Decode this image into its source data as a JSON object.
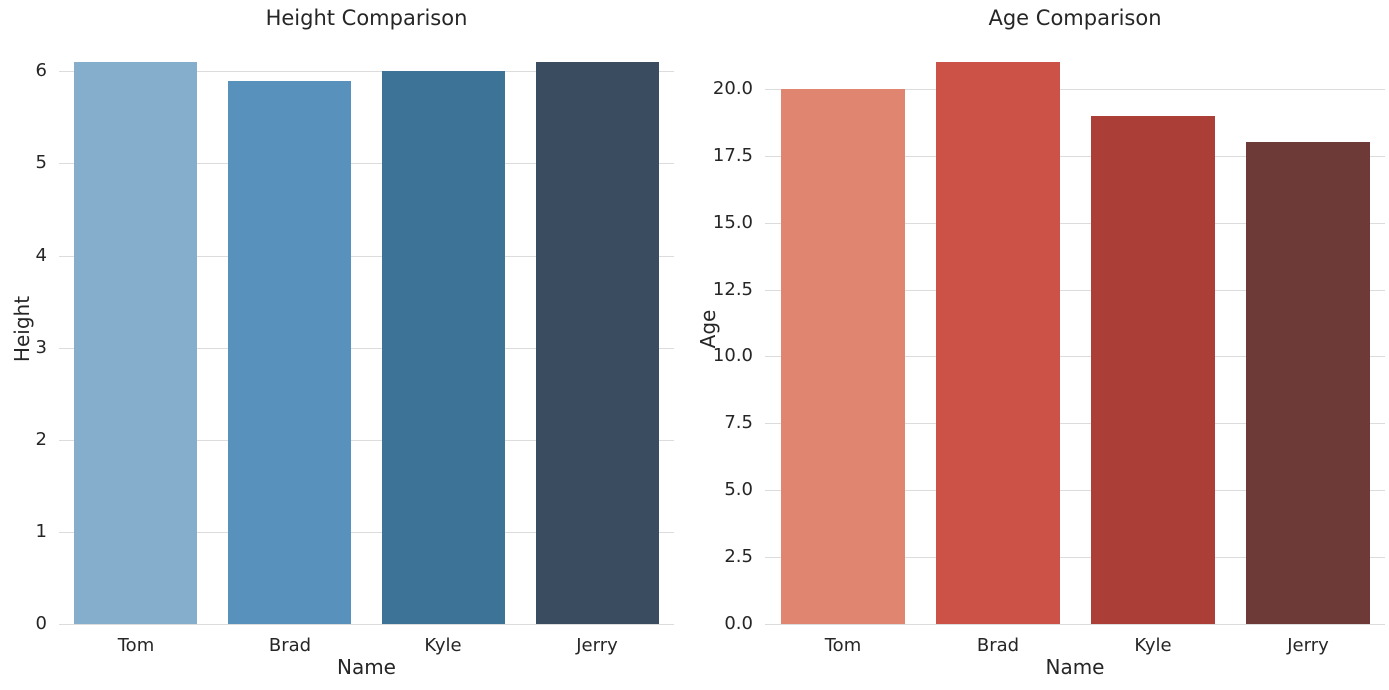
{
  "figure": {
    "background": "#ffffff",
    "grid_color": "#dcdcdc",
    "text_color": "#262626"
  },
  "chart_data": [
    {
      "type": "bar",
      "title": "Height Comparison",
      "xlabel": "Name",
      "ylabel": "Height",
      "categories": [
        "Tom",
        "Brad",
        "Kyle",
        "Jerry"
      ],
      "values": [
        6.1,
        5.9,
        6.0,
        6.1
      ],
      "bar_colors": [
        "#85aecc",
        "#5791bc",
        "#3d7396",
        "#3a4d60"
      ],
      "ylim": [
        0,
        6.405
      ],
      "yticks": [
        0,
        1,
        2,
        3,
        4,
        5,
        6
      ],
      "ytick_labels": [
        "0",
        "1",
        "2",
        "3",
        "4",
        "5",
        "6"
      ],
      "grid": "horizontal",
      "legend": null
    },
    {
      "type": "bar",
      "title": "Age Comparison",
      "xlabel": "Name",
      "ylabel": "Age",
      "categories": [
        "Tom",
        "Brad",
        "Kyle",
        "Jerry"
      ],
      "values": [
        20,
        21,
        19,
        18
      ],
      "bar_colors": [
        "#df8570",
        "#cc5248",
        "#ab3f38",
        "#6d3a37"
      ],
      "ylim": [
        0,
        22.05
      ],
      "yticks": [
        0,
        2.5,
        5,
        7.5,
        10,
        12.5,
        15,
        17.5,
        20
      ],
      "ytick_labels": [
        "0.0",
        "2.5",
        "5.0",
        "7.5",
        "10.0",
        "12.5",
        "15.0",
        "17.5",
        "20.0"
      ],
      "grid": "horizontal",
      "legend": null
    }
  ]
}
